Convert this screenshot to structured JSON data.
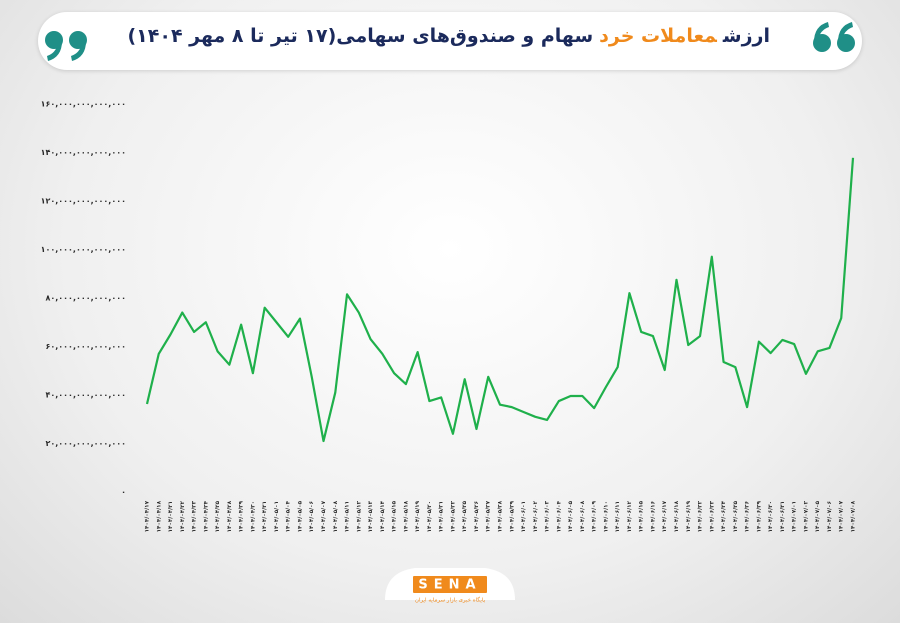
{
  "chart_data": {
    "type": "line",
    "title_parts": [
      {
        "text": "ارزش",
        "color": "#1b2a5c"
      },
      {
        "text": "معاملات خرد",
        "color": "#f08a1c"
      },
      {
        "text": "سهام و صندوق‌های سهامی(۱۷ تیر تا ۸ مهر ۱۴۰۴)",
        "color": "#1b2a5c"
      }
    ],
    "categories": [
      "۱۴۰۴/۰۴/۱۷",
      "۱۴۰۴/۰۴/۱۸",
      "۱۴۰۴/۰۴/۲۱",
      "۱۴۰۴/۰۴/۲۲",
      "۱۴۰۴/۰۴/۲۳",
      "۱۴۰۴/۰۴/۲۴",
      "۱۴۰۴/۰۴/۲۵",
      "۱۴۰۴/۰۴/۲۸",
      "۱۴۰۴/۰۴/۲۹",
      "۱۴۰۴/۰۴/۳۰",
      "۱۴۰۴/۰۴/۳۱",
      "۱۴۰۴/۰۵/۰۱",
      "۱۴۰۴/۰۵/۰۴",
      "۱۴۰۴/۰۵/۰۵",
      "۱۴۰۴/۰۵/۰۶",
      "۱۴۰۴/۰۵/۰۷",
      "۱۴۰۴/۰۵/۰۸",
      "۱۴۰۴/۰۵/۱۱",
      "۱۴۰۴/۰۵/۱۲",
      "۱۴۰۴/۰۵/۱۳",
      "۱۴۰۴/۰۵/۱۴",
      "۱۴۰۴/۰۵/۱۵",
      "۱۴۰۴/۰۵/۱۸",
      "۱۴۰۴/۰۵/۱۹",
      "۱۴۰۴/۰۵/۲۰",
      "۱۴۰۴/۰۵/۲۱",
      "۱۴۰۴/۰۵/۲۲",
      "۱۴۰۴/۰۵/۲۵",
      "۱۴۰۴/۰۵/۲۶",
      "۱۴۰۴/۰۵/۲۷",
      "۱۴۰۴/۰۵/۲۸",
      "۱۴۰۴/۰۵/۲۹",
      "۱۴۰۴/۰۶/۰۱",
      "۱۴۰۴/۰۶/۰۲",
      "۱۴۰۴/۰۶/۰۳",
      "۱۴۰۴/۰۶/۰۴",
      "۱۴۰۴/۰۶/۰۵",
      "۱۴۰۴/۰۶/۰۸",
      "۱۴۰۴/۰۶/۰۹",
      "۱۴۰۴/۰۶/۱۰",
      "۱۴۰۴/۰۶/۱۱",
      "۱۴۰۴/۰۶/۱۲",
      "۱۴۰۴/۰۶/۱۵",
      "۱۴۰۴/۰۶/۱۶",
      "۱۴۰۴/۰۶/۱۷",
      "۱۴۰۴/۰۶/۱۸",
      "۱۴۰۴/۰۶/۱۹",
      "۱۴۰۴/۰۶/۲۲",
      "۱۴۰۴/۰۶/۲۳",
      "۱۴۰۴/۰۶/۲۴",
      "۱۴۰۴/۰۶/۲۵",
      "۱۴۰۴/۰۶/۲۶",
      "۱۴۰۴/۰۶/۲۹",
      "۱۴۰۴/۰۶/۳۰",
      "۱۴۰۴/۰۶/۳۱",
      "۱۴۰۴/۰۷/۰۱",
      "۱۴۰۴/۰۷/۰۲",
      "۱۴۰۴/۰۷/۰۵",
      "۱۴۰۴/۰۷/۰۶",
      "۱۴۰۴/۰۷/۰۷",
      "۱۴۰۴/۰۷/۰۸"
    ],
    "series": [
      {
        "color": "#1fb04b",
        "values": [
          36300000000000,
          57000000000000,
          65000000000000,
          74000000000000,
          66000000000000,
          70000000000000,
          58000000000000,
          52500000000000,
          69000000000000,
          49000000000000,
          76000000000000,
          70000000000000,
          64000000000000,
          71500000000000,
          47500000000000,
          21000000000000,
          41000000000000,
          81500000000000,
          74000000000000,
          63000000000000,
          57000000000000,
          49000000000000,
          44500000000000,
          57700000000000,
          37500000000000,
          39000000000000,
          24000000000000,
          46500000000000,
          26000000000000,
          47500000000000,
          36000000000000,
          35000000000000,
          33000000000000,
          31000000000000,
          29700000000000,
          37500000000000,
          39600000000000,
          39600000000000,
          34600000000000,
          43300000000000,
          51500000000000,
          82000000000000,
          66000000000000,
          64300000000000,
          50300000000000,
          87500000000000,
          60600000000000,
          64300000000000,
          97000000000000,
          53600000000000,
          51500000000000,
          35000000000000,
          62000000000000,
          57300000000000,
          62700000000000,
          61000000000000,
          48700000000000,
          58000000000000,
          59400000000000,
          71700000000000,
          137800000000000
        ]
      }
    ],
    "ylim": [
      0,
      160000000000000
    ],
    "yticks": [
      {
        "value": 0,
        "label": "۰"
      },
      {
        "value": 20000000000000,
        "label": "۲۰,۰۰۰,۰۰۰,۰۰۰,۰۰۰"
      },
      {
        "value": 40000000000000,
        "label": "۴۰,۰۰۰,۰۰۰,۰۰۰,۰۰۰"
      },
      {
        "value": 60000000000000,
        "label": "۶۰,۰۰۰,۰۰۰,۰۰۰,۰۰۰"
      },
      {
        "value": 80000000000000,
        "label": "۸۰,۰۰۰,۰۰۰,۰۰۰,۰۰۰"
      },
      {
        "value": 100000000000000,
        "label": "۱۰۰,۰۰۰,۰۰۰,۰۰۰,۰۰۰"
      },
      {
        "value": 120000000000000,
        "label": "۱۲۰,۰۰۰,۰۰۰,۰۰۰,۰۰۰"
      },
      {
        "value": 140000000000000,
        "label": "۱۴۰,۰۰۰,۰۰۰,۰۰۰,۰۰۰"
      },
      {
        "value": 160000000000000,
        "label": "۱۶۰,۰۰۰,۰۰۰,۰۰۰,۰۰۰"
      }
    ],
    "grid": false,
    "logo": {
      "name": "SENA",
      "tagline": "پایگاه خبری بازار سرمایه ایران"
    }
  }
}
